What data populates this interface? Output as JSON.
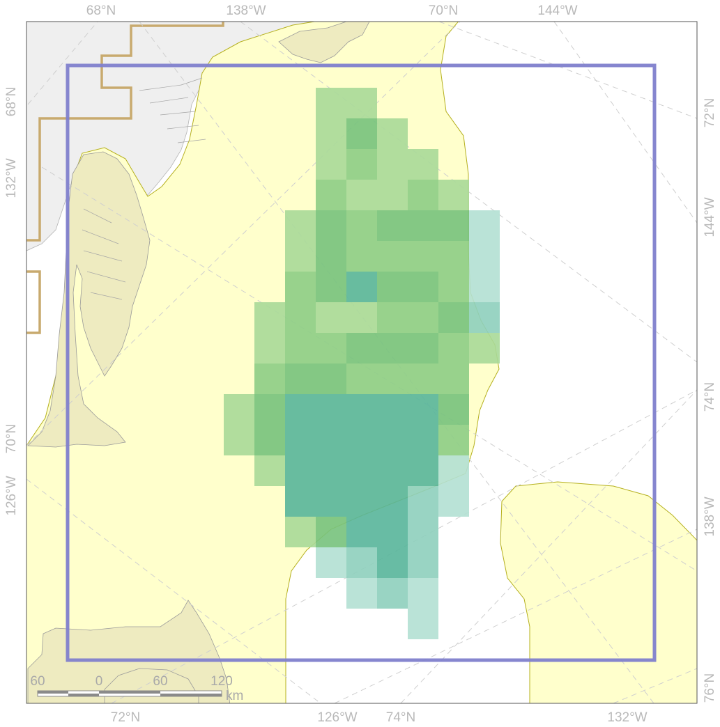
{
  "map": {
    "graticule_labels": {
      "top": [
        "68°N",
        "138°W",
        "70°N",
        "144°W"
      ],
      "bottom": [
        "72°N",
        "126°W",
        "74°N",
        "132°W"
      ],
      "left": [
        "68°N",
        "132°W",
        "70°N",
        "126°W"
      ],
      "right": [
        "72°N",
        "144°W",
        "74°N",
        "138°W",
        "76°N"
      ]
    },
    "scale_bar": {
      "ticks": [
        "60",
        "0",
        "60",
        "120"
      ],
      "unit": "km"
    },
    "colors": {
      "land": "#efefef",
      "buffer_region": "#ffffcc",
      "boundary_line": "#c8aa6e",
      "frame": "#8080cc",
      "cell_ramp": [
        "#c7e6ad",
        "#a9d998",
        "#8dcd85",
        "#77c27c",
        "#58b59a",
        "#8ecfbd",
        "#b3e0d3"
      ]
    },
    "grid_cells": [
      {
        "row": 0,
        "col": 3,
        "level": 1
      },
      {
        "row": 0,
        "col": 4,
        "level": 1
      },
      {
        "row": 1,
        "col": 3,
        "level": 1
      },
      {
        "row": 1,
        "col": 4,
        "level": 3
      },
      {
        "row": 1,
        "col": 5,
        "level": 1
      },
      {
        "row": 2,
        "col": 3,
        "level": 1
      },
      {
        "row": 2,
        "col": 4,
        "level": 2
      },
      {
        "row": 2,
        "col": 5,
        "level": 1
      },
      {
        "row": 2,
        "col": 6,
        "level": 1
      },
      {
        "row": 3,
        "col": 3,
        "level": 2
      },
      {
        "row": 3,
        "col": 4,
        "level": 1
      },
      {
        "row": 3,
        "col": 5,
        "level": 1
      },
      {
        "row": 3,
        "col": 6,
        "level": 2
      },
      {
        "row": 3,
        "col": 7,
        "level": 1
      },
      {
        "row": 4,
        "col": 2,
        "level": 1
      },
      {
        "row": 4,
        "col": 3,
        "level": 3
      },
      {
        "row": 4,
        "col": 4,
        "level": 2
      },
      {
        "row": 4,
        "col": 5,
        "level": 3
      },
      {
        "row": 4,
        "col": 6,
        "level": 3
      },
      {
        "row": 4,
        "col": 7,
        "level": 3
      },
      {
        "row": 4,
        "col": 8,
        "level": 6
      },
      {
        "row": 5,
        "col": 2,
        "level": 1
      },
      {
        "row": 5,
        "col": 3,
        "level": 3
      },
      {
        "row": 5,
        "col": 4,
        "level": 2
      },
      {
        "row": 5,
        "col": 5,
        "level": 2
      },
      {
        "row": 5,
        "col": 6,
        "level": 2
      },
      {
        "row": 5,
        "col": 7,
        "level": 2
      },
      {
        "row": 5,
        "col": 8,
        "level": 6
      },
      {
        "row": 6,
        "col": 2,
        "level": 2
      },
      {
        "row": 6,
        "col": 3,
        "level": 3
      },
      {
        "row": 6,
        "col": 4,
        "level": 4
      },
      {
        "row": 6,
        "col": 5,
        "level": 3
      },
      {
        "row": 6,
        "col": 6,
        "level": 3
      },
      {
        "row": 6,
        "col": 7,
        "level": 2
      },
      {
        "row": 6,
        "col": 8,
        "level": 6
      },
      {
        "row": 7,
        "col": 1,
        "level": 1
      },
      {
        "row": 7,
        "col": 2,
        "level": 2
      },
      {
        "row": 7,
        "col": 3,
        "level": 1
      },
      {
        "row": 7,
        "col": 4,
        "level": 1
      },
      {
        "row": 7,
        "col": 5,
        "level": 2
      },
      {
        "row": 7,
        "col": 6,
        "level": 2
      },
      {
        "row": 7,
        "col": 7,
        "level": 3
      },
      {
        "row": 7,
        "col": 8,
        "level": 5
      },
      {
        "row": 8,
        "col": 1,
        "level": 1
      },
      {
        "row": 8,
        "col": 2,
        "level": 2
      },
      {
        "row": 8,
        "col": 3,
        "level": 2
      },
      {
        "row": 8,
        "col": 4,
        "level": 3
      },
      {
        "row": 8,
        "col": 5,
        "level": 3
      },
      {
        "row": 8,
        "col": 6,
        "level": 3
      },
      {
        "row": 8,
        "col": 7,
        "level": 2
      },
      {
        "row": 8,
        "col": 8,
        "level": 1
      },
      {
        "row": 9,
        "col": 1,
        "level": 2
      },
      {
        "row": 9,
        "col": 2,
        "level": 3
      },
      {
        "row": 9,
        "col": 3,
        "level": 3
      },
      {
        "row": 9,
        "col": 4,
        "level": 2
      },
      {
        "row": 9,
        "col": 5,
        "level": 2
      },
      {
        "row": 9,
        "col": 6,
        "level": 2
      },
      {
        "row": 9,
        "col": 7,
        "level": 2
      },
      {
        "row": 10,
        "col": 0,
        "level": 1
      },
      {
        "row": 10,
        "col": 1,
        "level": 3
      },
      {
        "row": 10,
        "col": 2,
        "level": 4
      },
      {
        "row": 10,
        "col": 3,
        "level": 4
      },
      {
        "row": 10,
        "col": 4,
        "level": 4
      },
      {
        "row": 10,
        "col": 5,
        "level": 4
      },
      {
        "row": 10,
        "col": 6,
        "level": 4
      },
      {
        "row": 10,
        "col": 7,
        "level": 3
      },
      {
        "row": 11,
        "col": 0,
        "level": 1
      },
      {
        "row": 11,
        "col": 1,
        "level": 3
      },
      {
        "row": 11,
        "col": 2,
        "level": 4
      },
      {
        "row": 11,
        "col": 3,
        "level": 4
      },
      {
        "row": 11,
        "col": 4,
        "level": 4
      },
      {
        "row": 11,
        "col": 5,
        "level": 4
      },
      {
        "row": 11,
        "col": 6,
        "level": 4
      },
      {
        "row": 11,
        "col": 7,
        "level": 2
      },
      {
        "row": 12,
        "col": 1,
        "level": 1
      },
      {
        "row": 12,
        "col": 2,
        "level": 4
      },
      {
        "row": 12,
        "col": 3,
        "level": 4
      },
      {
        "row": 12,
        "col": 4,
        "level": 4
      },
      {
        "row": 12,
        "col": 5,
        "level": 4
      },
      {
        "row": 12,
        "col": 6,
        "level": 4
      },
      {
        "row": 12,
        "col": 7,
        "level": 6
      },
      {
        "row": 13,
        "col": 2,
        "level": 4
      },
      {
        "row": 13,
        "col": 3,
        "level": 4
      },
      {
        "row": 13,
        "col": 4,
        "level": 4
      },
      {
        "row": 13,
        "col": 5,
        "level": 4
      },
      {
        "row": 13,
        "col": 6,
        "level": 5
      },
      {
        "row": 13,
        "col": 7,
        "level": 6
      },
      {
        "row": 14,
        "col": 2,
        "level": 1
      },
      {
        "row": 14,
        "col": 3,
        "level": 3
      },
      {
        "row": 14,
        "col": 4,
        "level": 4
      },
      {
        "row": 14,
        "col": 5,
        "level": 4
      },
      {
        "row": 14,
        "col": 6,
        "level": 5
      },
      {
        "row": 15,
        "col": 3,
        "level": 6
      },
      {
        "row": 15,
        "col": 4,
        "level": 5
      },
      {
        "row": 15,
        "col": 5,
        "level": 4
      },
      {
        "row": 15,
        "col": 6,
        "level": 5
      },
      {
        "row": 16,
        "col": 4,
        "level": 6
      },
      {
        "row": 16,
        "col": 5,
        "level": 5
      },
      {
        "row": 16,
        "col": 6,
        "level": 6
      },
      {
        "row": 17,
        "col": 6,
        "level": 6
      }
    ]
  }
}
